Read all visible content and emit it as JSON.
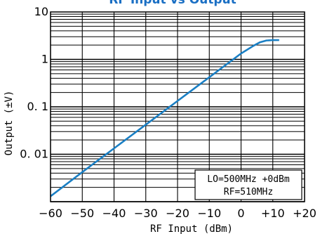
{
  "chart_data": {
    "type": "line",
    "title": "RF Input vs Output",
    "xlabel": "RF Input (dBm)",
    "ylabel": "Output (±V)",
    "xlim": [
      -60,
      20
    ],
    "ylim": [
      0.001,
      10
    ],
    "y_scale": "log",
    "grid": true,
    "x_ticks": [
      -60,
      -50,
      -40,
      -30,
      -20,
      -10,
      0,
      10,
      20
    ],
    "x_tick_labels": [
      "−60",
      "−50",
      "−40",
      "−30",
      "−20",
      "−10",
      "0",
      "+10",
      "+20"
    ],
    "y_ticks": [
      10,
      1,
      0.1,
      0.01
    ],
    "y_tick_labels": [
      "10",
      "1",
      "0. 1",
      "0. 01"
    ],
    "annotation": {
      "line1": "LO=500MHz +0dBm",
      "line2": "RF=510MHz",
      "placement": "bottom-right"
    },
    "series": [
      {
        "color": "#1a7fc4",
        "x": [
          -60,
          -50,
          -40,
          -30,
          -20,
          -10,
          0,
          4,
          6,
          8,
          10,
          12
        ],
        "y": [
          0.0013,
          0.0042,
          0.0133,
          0.042,
          0.133,
          0.42,
          1.33,
          1.95,
          2.3,
          2.5,
          2.55,
          2.55
        ]
      }
    ]
  }
}
